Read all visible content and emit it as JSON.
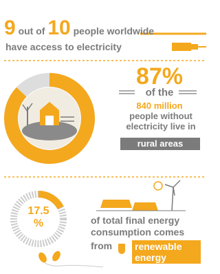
{
  "header": {
    "count": "9",
    "connector": "out of",
    "total": "10",
    "noun": "people",
    "highlight": "worldwide",
    "line2": "have access to electricity"
  },
  "rural": {
    "stat": {
      "value": 87,
      "label": "87%"
    },
    "of_the": "of the",
    "amount": "840 million",
    "text": "people without electricity live in",
    "highlight": "rural areas"
  },
  "renewable": {
    "stat": {
      "value": 17.5,
      "label_lines": [
        "17.5",
        "%"
      ]
    },
    "text": "of total final energy consumption comes",
    "from": "from",
    "highlight": "renewable energy"
  }
}
